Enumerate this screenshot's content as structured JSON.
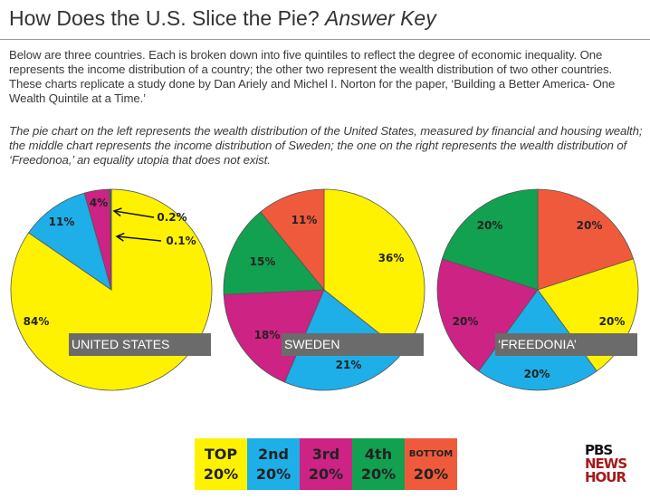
{
  "title": {
    "main": "How Does the U.S. Slice the Pie?",
    "italic": "Answer Key"
  },
  "intro": "Below are three countries. Each is broken down into five quintiles to reflect the degree of economic inequality. One represents the income distribution of a country; the other two represent the wealth distribution of two other countries. These charts replicate a study done by Dan Ariely and Michel I. Norton for the paper, ‘Building a Better America- One Wealth Quintile at a Time.’",
  "answer": "The pie chart on the left represents the wealth distribution of the United States, measured by financial and housing wealth; the middle chart represents the income distribution of Sweden; the one on the right represents the wealth distribution of ‘Freedonoa,’ an equality utopia that does not exist.",
  "colors": {
    "top": "#fff200",
    "2nd": "#1eaee8",
    "3rd": "#cc2384",
    "4th": "#12a150",
    "bottom": "#ef5a3c"
  },
  "chart_data": [
    {
      "type": "pie",
      "title": "UNITED STATES",
      "start": "12 o'clock, clockwise",
      "slices": [
        {
          "quintile": "top",
          "value": 84,
          "label": "84%"
        },
        {
          "quintile": "2nd",
          "value": 11,
          "label": "11%"
        },
        {
          "quintile": "3rd",
          "value": 4,
          "label": "4%"
        },
        {
          "quintile": "4th",
          "value": 0.2,
          "label": "0.2%"
        },
        {
          "quintile": "bottom",
          "value": 0.1,
          "label": "0.1%"
        }
      ]
    },
    {
      "type": "pie",
      "title": "SWEDEN",
      "start": "12 o'clock, clockwise",
      "slices": [
        {
          "quintile": "top",
          "value": 36,
          "label": "36%"
        },
        {
          "quintile": "2nd",
          "value": 21,
          "label": "21%"
        },
        {
          "quintile": "3rd",
          "value": 18,
          "label": "18%"
        },
        {
          "quintile": "4th",
          "value": 15,
          "label": "15%"
        },
        {
          "quintile": "bottom",
          "value": 11,
          "label": "11%"
        }
      ]
    },
    {
      "type": "pie",
      "title": "‘FREEDONIA’",
      "start": "12 o'clock, clockwise",
      "slices": [
        {
          "quintile": "bottom",
          "value": 20,
          "label": "20%"
        },
        {
          "quintile": "top",
          "value": 20,
          "label": "20%"
        },
        {
          "quintile": "2nd",
          "value": 20,
          "label": "20%"
        },
        {
          "quintile": "3rd",
          "value": 20,
          "label": "20%"
        },
        {
          "quintile": "4th",
          "value": 20,
          "label": "20%"
        }
      ]
    }
  ],
  "legend": [
    {
      "quintile": "top",
      "name": "TOP",
      "pct": "20%"
    },
    {
      "quintile": "2nd",
      "name": "2nd",
      "pct": "20%"
    },
    {
      "quintile": "3rd",
      "name": "3rd",
      "pct": "20%"
    },
    {
      "quintile": "4th",
      "name": "4th",
      "pct": "20%"
    },
    {
      "quintile": "bottom",
      "name": "BOTTOM",
      "pct": "20%"
    }
  ],
  "logo": {
    "line1": "PBS",
    "line2": "NEWS",
    "line3": "HOUR"
  }
}
